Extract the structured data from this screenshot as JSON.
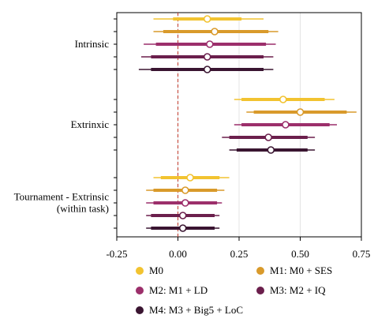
{
  "chart_data": {
    "type": "forest",
    "xlim": [
      -0.25,
      0.75
    ],
    "x_ticks": [
      "-0.25",
      "0.00",
      "0.25",
      "0.50",
      "0.75"
    ],
    "x_tick_values": [
      -0.25,
      0.0,
      0.25,
      0.5,
      0.75
    ],
    "reference_line": 0.0,
    "vertical_grid": true,
    "legend_position": "bottom",
    "groups": [
      {
        "label": "Intrinsic",
        "rows": [
          {
            "model": "M0",
            "estimate": 0.12,
            "ci_inner": [
              -0.02,
              0.26
            ],
            "ci_outer": [
              -0.1,
              0.35
            ]
          },
          {
            "model": "M1",
            "estimate": 0.15,
            "ci_inner": [
              -0.06,
              0.37
            ],
            "ci_outer": [
              -0.1,
              0.41
            ]
          },
          {
            "model": "M2",
            "estimate": 0.13,
            "ci_inner": [
              -0.09,
              0.36
            ],
            "ci_outer": [
              -0.14,
              0.4
            ]
          },
          {
            "model": "M3",
            "estimate": 0.12,
            "ci_inner": [
              -0.11,
              0.35
            ],
            "ci_outer": [
              -0.15,
              0.39
            ]
          },
          {
            "model": "M4",
            "estimate": 0.12,
            "ci_inner": [
              -0.11,
              0.35
            ],
            "ci_outer": [
              -0.16,
              0.39
            ]
          }
        ]
      },
      {
        "label": "Extrinxic",
        "rows": [
          {
            "model": "M0",
            "estimate": 0.43,
            "ci_inner": [
              0.26,
              0.6
            ],
            "ci_outer": [
              0.23,
              0.64
            ]
          },
          {
            "model": "M1",
            "estimate": 0.5,
            "ci_inner": [
              0.31,
              0.69
            ],
            "ci_outer": [
              0.28,
              0.73
            ]
          },
          {
            "model": "M2",
            "estimate": 0.44,
            "ci_inner": [
              0.26,
              0.62
            ],
            "ci_outer": [
              0.23,
              0.65
            ]
          },
          {
            "model": "M3",
            "estimate": 0.37,
            "ci_inner": [
              0.21,
              0.53
            ],
            "ci_outer": [
              0.18,
              0.56
            ]
          },
          {
            "model": "M4",
            "estimate": 0.38,
            "ci_inner": [
              0.24,
              0.53
            ],
            "ci_outer": [
              0.21,
              0.56
            ]
          }
        ]
      },
      {
        "label": "Tournament - Extrinsic\n(within task)",
        "rows": [
          {
            "model": "M0",
            "estimate": 0.05,
            "ci_inner": [
              -0.07,
              0.17
            ],
            "ci_outer": [
              -0.1,
              0.21
            ]
          },
          {
            "model": "M1",
            "estimate": 0.03,
            "ci_inner": [
              -0.1,
              0.16
            ],
            "ci_outer": [
              -0.13,
              0.19
            ]
          },
          {
            "model": "M2",
            "estimate": 0.03,
            "ci_inner": [
              -0.1,
              0.16
            ],
            "ci_outer": [
              -0.13,
              0.18
            ]
          },
          {
            "model": "M3",
            "estimate": 0.02,
            "ci_inner": [
              -0.11,
              0.15
            ],
            "ci_outer": [
              -0.13,
              0.17
            ]
          },
          {
            "model": "M4",
            "estimate": 0.02,
            "ci_inner": [
              -0.11,
              0.15
            ],
            "ci_outer": [
              -0.13,
              0.17
            ]
          }
        ]
      }
    ],
    "series": [
      {
        "key": "M0",
        "name": "M0",
        "color": "#f2c330"
      },
      {
        "key": "M1",
        "name": "M1: M0 + SES",
        "color": "#d99a2b"
      },
      {
        "key": "M2",
        "name": "M2: M1 + LD",
        "color": "#9c2f6b"
      },
      {
        "key": "M3",
        "name": "M3: M2 + IQ",
        "color": "#6b1f4c"
      },
      {
        "key": "M4",
        "name": "M4: M3 + Big5 + LoC",
        "color": "#3a1531"
      }
    ],
    "reference_line_color": "#c0392b",
    "grid_color": "#e4e4e4"
  }
}
